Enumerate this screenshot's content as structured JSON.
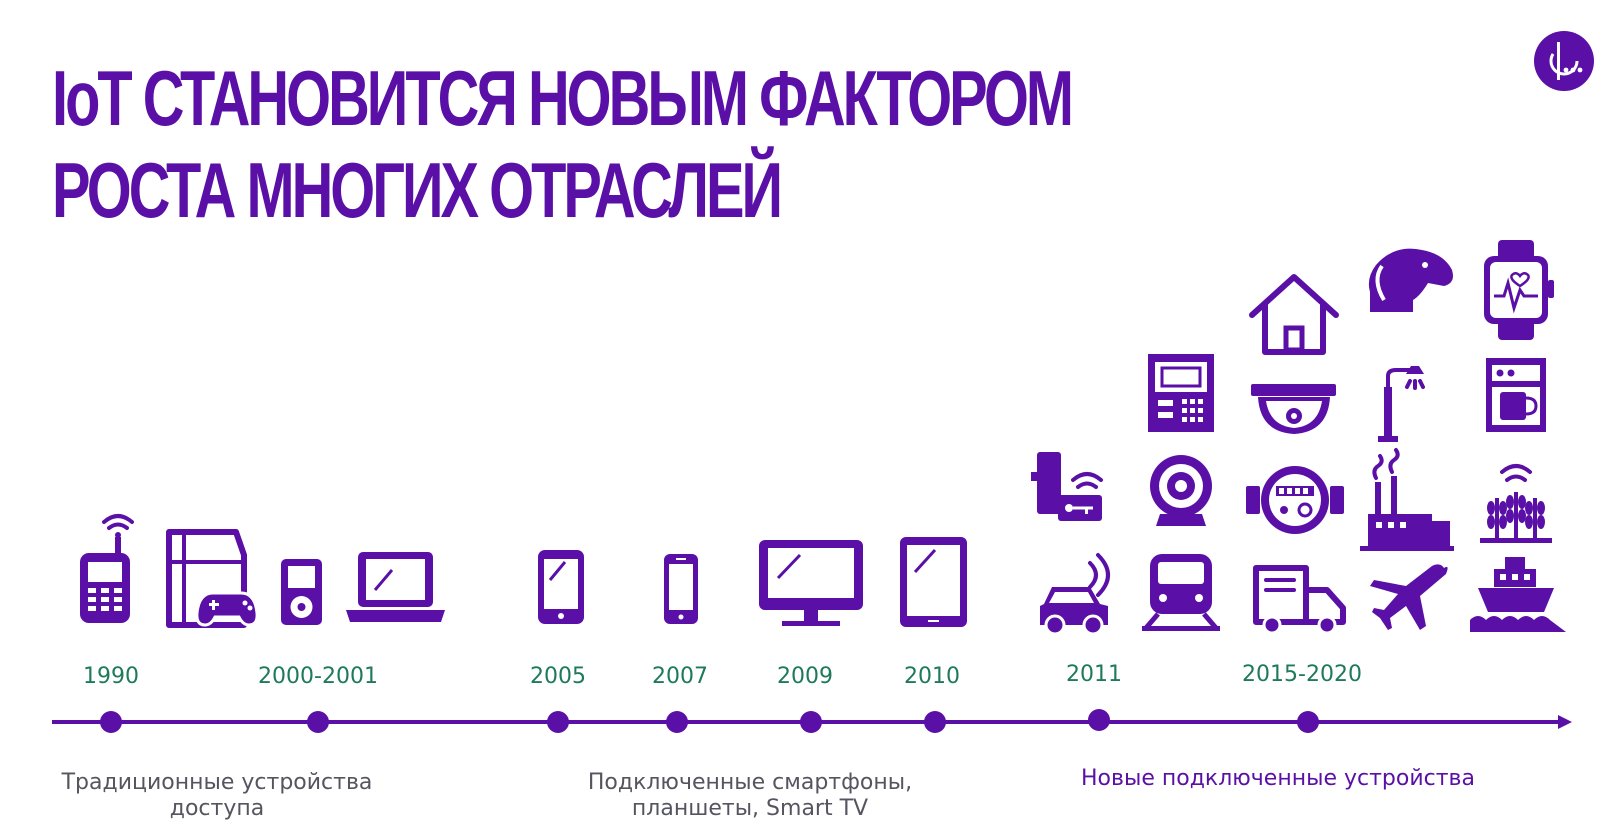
{
  "title": {
    "line1": "IoT СТАНОВИТСЯ НОВЫМ ФАКТОРОМ",
    "line2": "РОСТА МНОГИХ ОТРАСЛЕЙ"
  },
  "colors": {
    "accent": "#5a10a6",
    "year_text": "#1f7a5a",
    "caption_text": "#555560"
  },
  "timeline": {
    "years": [
      "1990",
      "2000-2001",
      "2005",
      "2007",
      "2009",
      "2010",
      "2011",
      "2015-2020"
    ]
  },
  "captions": {
    "traditional": {
      "line1": "Традиционные устройства",
      "line2": "доступа"
    },
    "connected": {
      "line1": "Подключенные смартфоны,",
      "line2": "планшеты, Smart TV"
    },
    "new_devices": {
      "line1": "Новые подключенные устройства"
    }
  },
  "icons": [
    "cellular-phone-icon",
    "game-console-icon",
    "mp3-player-icon",
    "laptop-icon",
    "smartphone-icon",
    "mobile-phone-icon",
    "monitor-icon",
    "tablet-icon",
    "smart-lock-icon",
    "connected-car-icon",
    "payment-terminal-icon",
    "webcam-icon",
    "train-icon",
    "smart-home-icon",
    "security-camera-icon",
    "water-meter-icon",
    "delivery-truck-icon",
    "dog-tracker-icon",
    "street-lamp-icon",
    "factory-icon",
    "airplane-icon",
    "smartwatch-icon",
    "coffee-maker-icon",
    "smart-farming-icon",
    "ship-icon"
  ]
}
